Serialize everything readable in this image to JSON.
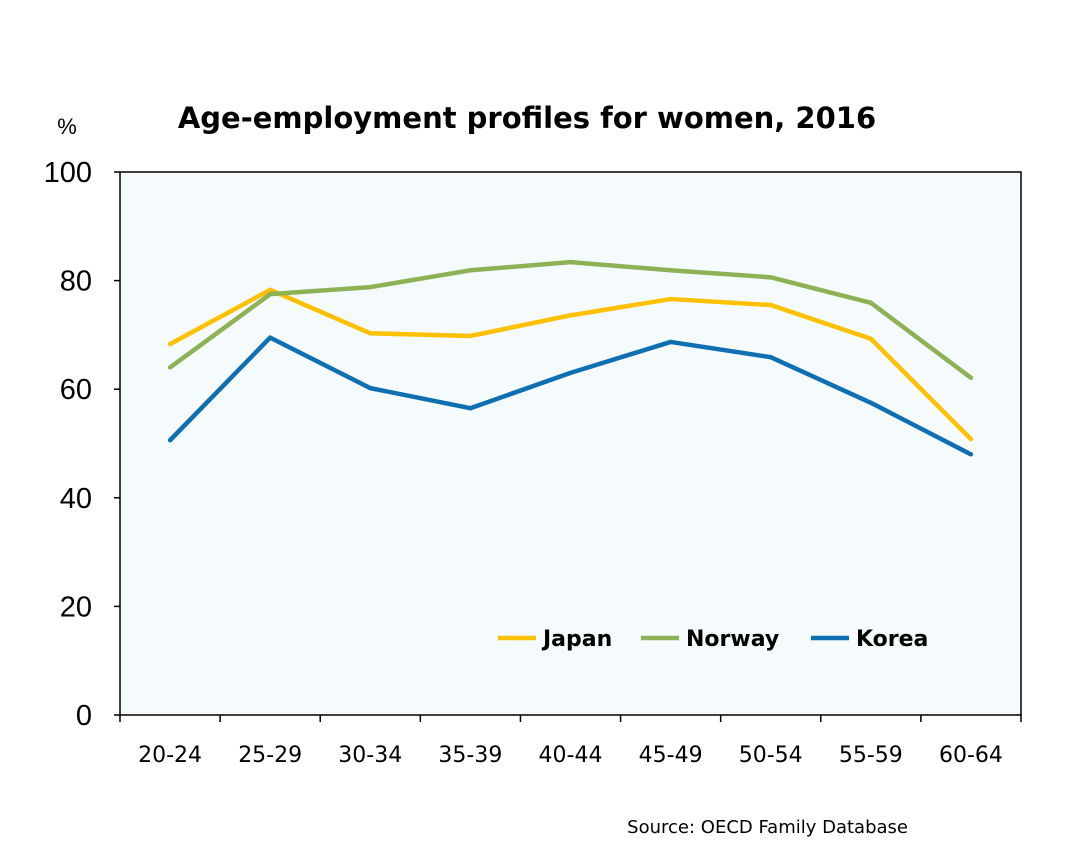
{
  "chart_data": {
    "type": "line",
    "title": "Age-employment profiles for women, 2016",
    "ylabel": "%",
    "xlabel": "",
    "categories": [
      "20-24",
      "25-29",
      "30-34",
      "35-39",
      "40-44",
      "45-49",
      "50-54",
      "55-59",
      "60-64"
    ],
    "ylim": [
      0,
      100
    ],
    "yticks": [
      0,
      20,
      40,
      60,
      80,
      100
    ],
    "grid": false,
    "legend_position": "bottom-right",
    "source": "Source: OECD Family Database",
    "plot_background": "#F5FAFC",
    "series": [
      {
        "name": "Japan",
        "color": "#FFC000",
        "values": [
          68.3,
          78.3,
          70.3,
          69.8,
          73.6,
          76.6,
          75.5,
          69.3,
          50.8
        ]
      },
      {
        "name": "Norway",
        "color": "#8DB255",
        "values": [
          64.0,
          77.5,
          78.8,
          81.9,
          83.4,
          81.9,
          80.6,
          75.9,
          62.1
        ]
      },
      {
        "name": "Korea",
        "color": "#0F6FB3",
        "values": [
          50.6,
          69.5,
          60.2,
          56.5,
          63.0,
          68.7,
          65.9,
          57.5,
          48.0
        ]
      }
    ]
  }
}
